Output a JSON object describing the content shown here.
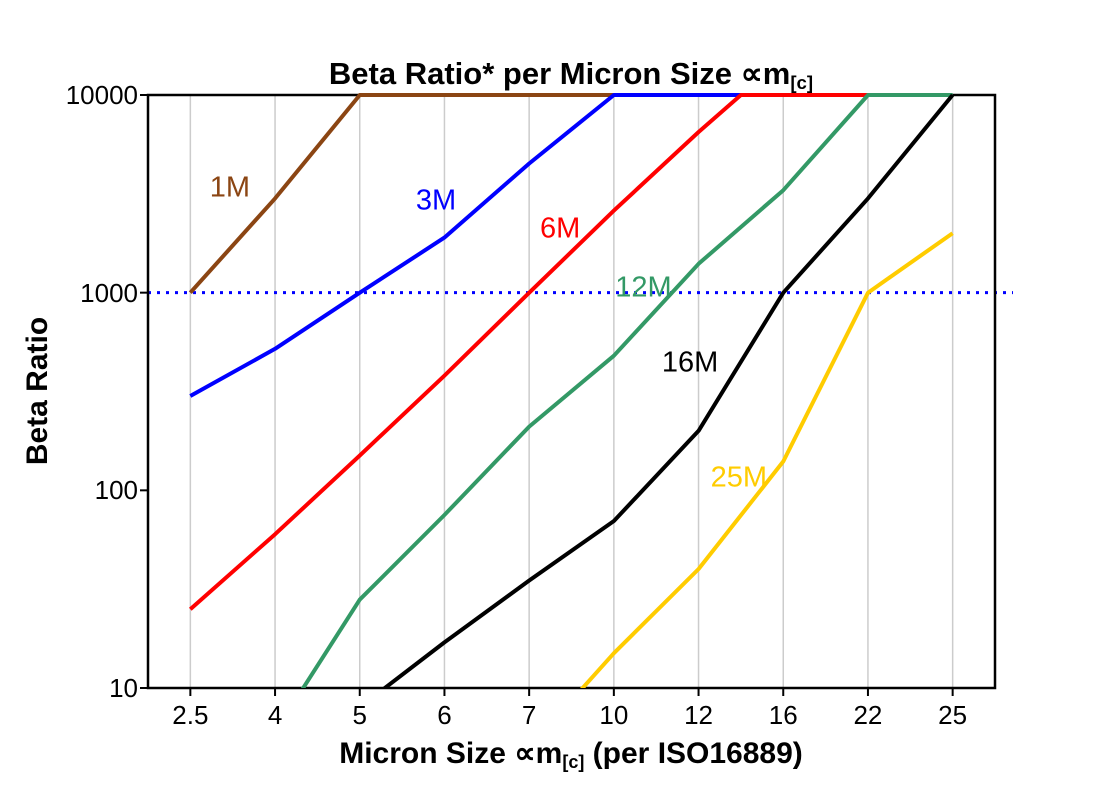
{
  "title": {
    "main": "Beta Ratio* per Micron Size ∝m",
    "sub": "[c]"
  },
  "y_axis": {
    "label": "Beta Ratio",
    "ticks": [
      "10000",
      "1000",
      "100",
      "10"
    ]
  },
  "x_axis": {
    "label_pre": "Micron Size ∝m",
    "sub": "[c]",
    "label_post": " (per ISO16889)",
    "ticks": [
      "2.5",
      "4",
      "5",
      "6",
      "7",
      "10",
      "12",
      "16",
      "22",
      "25"
    ]
  },
  "chart_data": {
    "type": "line",
    "title": "Beta Ratio* per Micron Size ∝m[c]",
    "xlabel": "Micron Size ∝m[c] (per ISO16889)",
    "ylabel": "Beta Ratio",
    "x_scale": "categorical",
    "y_scale": "log",
    "categories": [
      2.5,
      4,
      5,
      6,
      7,
      10,
      12,
      16,
      22,
      25
    ],
    "ylim": [
      10,
      10000
    ],
    "y_tick_values": [
      10000,
      1000,
      100,
      10
    ],
    "grid": "vertical-only",
    "grid_color": "#CCCCCC",
    "legend_position": "inline-labels",
    "reference_line": {
      "y": 1000,
      "color": "#0000FF",
      "style": "dotted"
    },
    "series": [
      {
        "name": "1M",
        "color": "#8B4513",
        "points": [
          [
            2.5,
            1000
          ],
          [
            4,
            3000
          ],
          [
            5,
            10000
          ],
          [
            10,
            10000
          ]
        ],
        "label": {
          "x": 3.2,
          "y": 3400
        }
      },
      {
        "name": "3M",
        "color": "#0000FF",
        "points": [
          [
            2.5,
            300
          ],
          [
            4,
            520
          ],
          [
            5,
            1000
          ],
          [
            6,
            1900
          ],
          [
            7,
            4500
          ],
          [
            10,
            10000
          ],
          [
            14,
            10000
          ]
        ],
        "label": {
          "x": 5.9,
          "y": 2900
        }
      },
      {
        "name": "6M",
        "color": "#FF0000",
        "points": [
          [
            2.5,
            25
          ],
          [
            4,
            60
          ],
          [
            5,
            150
          ],
          [
            6,
            380
          ],
          [
            7,
            1000
          ],
          [
            10,
            2600
          ],
          [
            12,
            6500
          ],
          [
            14,
            10000
          ],
          [
            22,
            10000
          ]
        ],
        "label": {
          "x": 8.1,
          "y": 2100
        }
      },
      {
        "name": "12M",
        "color": "#339966",
        "points": [
          [
            4,
            6
          ],
          [
            5,
            28
          ],
          [
            6,
            75
          ],
          [
            7,
            210
          ],
          [
            10,
            480
          ],
          [
            12,
            1400
          ],
          [
            16,
            3300
          ],
          [
            22,
            10000
          ],
          [
            25,
            10000
          ]
        ],
        "label": {
          "x": 10.7,
          "y": 1050
        }
      },
      {
        "name": "16M",
        "color": "#000000",
        "points": [
          [
            5,
            8
          ],
          [
            6,
            17
          ],
          [
            7,
            35
          ],
          [
            10,
            70
          ],
          [
            12,
            200
          ],
          [
            16,
            1000
          ],
          [
            22,
            3000
          ],
          [
            25,
            10000
          ]
        ],
        "label": {
          "x": 11.8,
          "y": 440
        }
      },
      {
        "name": "25M",
        "color": "#FFCC00",
        "points": [
          [
            7,
            5
          ],
          [
            10,
            15
          ],
          [
            12,
            40
          ],
          [
            16,
            140
          ],
          [
            22,
            1000
          ],
          [
            25,
            2000
          ]
        ],
        "label": {
          "x": 13.9,
          "y": 115
        }
      }
    ]
  }
}
